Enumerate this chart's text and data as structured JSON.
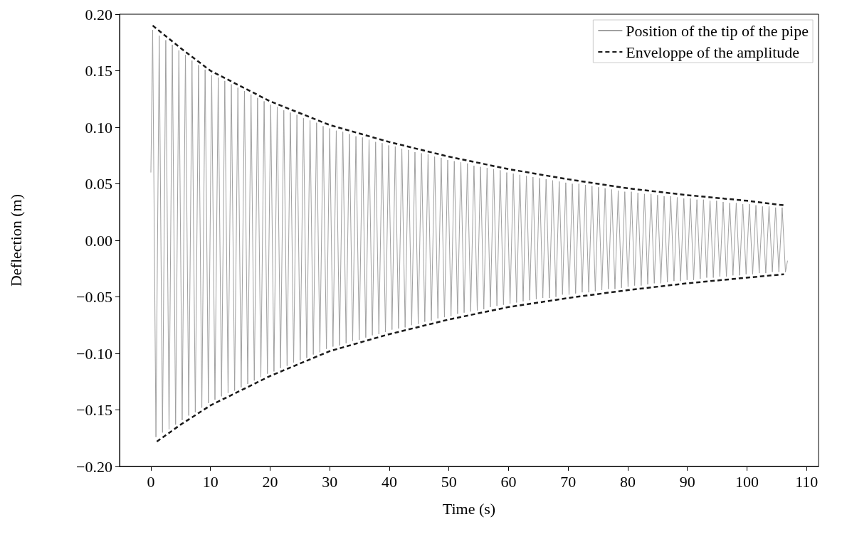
{
  "chart_data": {
    "type": "line",
    "xlabel": "Time (s)",
    "ylabel": "Deflection (m)",
    "xlim": [
      -5.25,
      112
    ],
    "xticks": [
      0,
      10,
      20,
      30,
      40,
      50,
      60,
      70,
      80,
      90,
      100,
      110
    ],
    "ylim": [
      -0.2,
      0.2
    ],
    "yticks": [
      {
        "value": -0.2,
        "label": "−0.20"
      },
      {
        "value": -0.15,
        "label": "−0.15"
      },
      {
        "value": -0.1,
        "label": "−0.10"
      },
      {
        "value": -0.05,
        "label": "−0.05"
      },
      {
        "value": 0,
        "label": "0.00"
      },
      {
        "value": 0.05,
        "label": "0.05"
      },
      {
        "value": 0.1,
        "label": "0.10"
      },
      {
        "value": 0.15,
        "label": "0.15"
      },
      {
        "value": 0.2,
        "label": "0.20"
      }
    ],
    "grid": false,
    "legend": "top right",
    "marker": "none",
    "series": [
      {
        "name": "Position of the tip of the pipe",
        "color": "#a0a0a0",
        "line_style": "solid",
        "x": [
          0,
          0.3,
          0.85,
          1.4,
          1.95,
          2.5,
          3.05,
          3.6,
          4.15,
          4.7,
          5.25,
          5.8,
          6.35,
          6.9,
          7.45,
          8.0,
          8.55,
          9.1,
          9.65,
          10.2,
          10.75,
          11.3,
          11.85,
          12.4,
          12.95,
          13.5,
          14.05,
          14.6,
          15.15,
          15.7,
          16.25,
          16.8,
          17.35,
          17.9,
          18.45,
          19.0,
          19.55,
          20.1,
          20.65,
          21.2,
          21.75,
          22.3,
          22.85,
          23.4,
          23.95,
          24.5,
          25.05,
          25.6,
          26.15,
          26.7,
          27.25,
          27.8,
          28.35,
          28.9,
          29.45,
          30.0,
          30.55,
          31.1,
          31.65,
          32.2,
          32.75,
          33.3,
          33.85,
          34.4,
          34.95,
          35.5,
          36.05,
          36.6,
          37.15,
          37.7,
          38.25,
          38.8,
          39.35,
          39.9,
          40.45,
          41.0,
          41.55,
          42.1,
          42.65,
          43.2,
          43.75,
          44.3,
          44.85,
          45.4,
          45.95,
          46.5,
          47.05,
          47.6,
          48.15,
          48.7,
          49.25,
          49.8,
          50.35,
          50.9,
          51.45,
          52.0,
          52.55,
          53.1,
          53.65,
          54.2,
          54.75,
          55.3,
          55.85,
          56.4,
          56.95,
          57.5,
          58.05,
          58.6,
          59.15,
          59.7,
          60.25,
          60.8,
          61.35,
          61.9,
          62.45,
          63.0,
          63.55,
          64.1,
          64.65,
          65.2,
          65.75,
          66.3,
          66.85,
          67.4,
          67.95,
          68.5,
          69.05,
          69.6,
          70.15,
          70.7,
          71.25,
          71.8,
          72.35,
          72.9,
          73.45,
          74.0,
          74.55,
          75.1,
          75.65,
          76.2,
          76.75,
          77.3,
          77.85,
          78.4,
          78.95,
          79.5,
          80.05,
          80.6,
          81.15,
          81.7,
          82.25,
          82.8,
          83.35,
          83.9,
          84.45,
          85.0,
          85.55,
          86.1,
          86.65,
          87.2,
          87.75,
          88.3,
          88.85,
          89.4,
          89.95,
          90.5,
          91.05,
          91.6,
          92.15,
          92.7,
          93.25,
          93.8,
          94.35,
          94.9,
          95.45,
          96.0,
          96.55,
          97.1,
          97.65,
          98.2,
          98.75,
          99.3,
          99.85,
          100.4,
          100.95,
          101.5,
          102.05,
          102.6,
          103.15,
          103.7,
          104.25,
          104.8,
          105.35,
          105.9,
          106.45,
          106.8
        ],
        "values": [
          0.06,
          0.186,
          -0.174,
          0.181,
          -0.17,
          0.177,
          -0.167,
          0.173,
          -0.163,
          0.168,
          -0.159,
          0.164,
          -0.155,
          0.159,
          -0.152,
          0.155,
          -0.148,
          0.151,
          -0.144,
          0.146,
          -0.141,
          0.144,
          -0.138,
          0.141,
          -0.135,
          0.138,
          -0.133,
          0.135,
          -0.13,
          0.132,
          -0.127,
          0.129,
          -0.124,
          0.126,
          -0.121,
          0.123,
          -0.118,
          0.12,
          -0.116,
          0.118,
          -0.113,
          0.115,
          -0.111,
          0.113,
          -0.108,
          0.111,
          -0.106,
          0.108,
          -0.104,
          0.106,
          -0.101,
          0.104,
          -0.099,
          0.101,
          -0.096,
          0.099,
          -0.094,
          0.097,
          -0.093,
          0.096,
          -0.091,
          0.094,
          -0.089,
          0.092,
          -0.088,
          0.091,
          -0.086,
          0.089,
          -0.084,
          0.087,
          -0.083,
          0.086,
          -0.081,
          0.084,
          -0.079,
          0.083,
          -0.078,
          0.081,
          -0.077,
          0.08,
          -0.075,
          0.078,
          -0.074,
          0.077,
          -0.072,
          0.076,
          -0.071,
          0.074,
          -0.069,
          0.073,
          -0.068,
          0.071,
          -0.067,
          0.07,
          -0.065,
          0.069,
          -0.064,
          0.068,
          -0.063,
          0.066,
          -0.062,
          0.065,
          -0.061,
          0.064,
          -0.059,
          0.063,
          -0.058,
          0.062,
          -0.057,
          0.06,
          -0.056,
          0.059,
          -0.055,
          0.058,
          -0.054,
          0.057,
          -0.053,
          0.056,
          -0.052,
          0.055,
          -0.051,
          0.054,
          -0.051,
          0.053,
          -0.05,
          0.052,
          -0.048,
          0.051,
          -0.048,
          0.05,
          -0.047,
          0.05,
          -0.046,
          0.049,
          -0.046,
          0.048,
          -0.045,
          0.047,
          -0.044,
          0.046,
          -0.043,
          0.045,
          -0.043,
          0.044,
          -0.042,
          0.043,
          -0.041,
          0.043,
          -0.04,
          0.042,
          -0.04,
          0.041,
          -0.039,
          0.041,
          -0.038,
          0.04,
          -0.038,
          0.039,
          -0.037,
          0.039,
          -0.036,
          0.038,
          -0.036,
          0.037,
          -0.035,
          0.037,
          -0.035,
          0.036,
          -0.034,
          0.036,
          -0.033,
          0.035,
          -0.033,
          0.035,
          -0.032,
          0.034,
          -0.032,
          0.033,
          -0.031,
          0.033,
          -0.031,
          0.032,
          -0.03,
          0.032,
          -0.03,
          0.031,
          -0.029,
          0.03,
          -0.029,
          0.03,
          -0.028,
          0.029,
          -0.028,
          0.029,
          -0.028,
          -0.018
        ]
      },
      {
        "name": "Enveloppe of the amplitude",
        "color": "#1a1a1a",
        "line_style": "dashed",
        "x": [
          0.3,
          5,
          10,
          20,
          30,
          40,
          50,
          60,
          70,
          80,
          90,
          100,
          106.2
        ],
        "values": [
          0.19,
          0.17,
          0.15,
          0.123,
          0.102,
          0.087,
          0.074,
          0.063,
          0.054,
          0.046,
          0.04,
          0.035,
          0.031
        ]
      },
      {
        "color": "#1a1a1a",
        "line_style": "dashed",
        "x": [
          1,
          5,
          10,
          20,
          30,
          40,
          50,
          60,
          70,
          80,
          90,
          100,
          106.2
        ],
        "values": [
          -0.178,
          -0.163,
          -0.146,
          -0.12,
          -0.098,
          -0.083,
          -0.07,
          -0.059,
          -0.051,
          -0.044,
          -0.038,
          -0.033,
          -0.03
        ]
      }
    ]
  }
}
